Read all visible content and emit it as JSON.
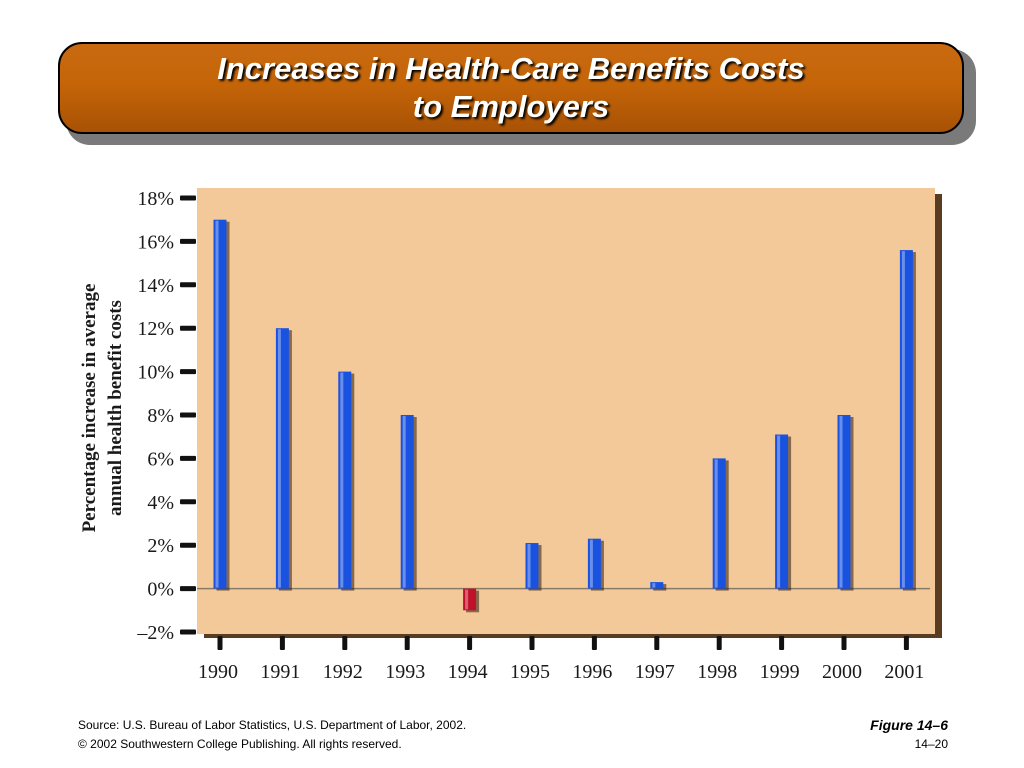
{
  "title": {
    "line1": "Increases in Health-Care Benefits Costs",
    "line2": "to Employers"
  },
  "chart_data": {
    "type": "bar",
    "ylabel_line1": "Percentage increase in average",
    "ylabel_line2": "annual health benefit costs",
    "categories": [
      "1990",
      "1991",
      "1992",
      "1993",
      "1994",
      "1995",
      "1996",
      "1997",
      "1998",
      "1999",
      "2000",
      "2001"
    ],
    "values": [
      17,
      12,
      10,
      8,
      -1,
      2.1,
      2.3,
      0.3,
      6,
      7.1,
      8,
      15.6
    ],
    "ylim": [
      -2,
      18
    ],
    "yticks": [
      "18%",
      "16%",
      "14%",
      "12%",
      "10%",
      "8%",
      "6%",
      "4%",
      "2%",
      "0%",
      "–2%"
    ],
    "ytick_values": [
      18,
      16,
      14,
      12,
      10,
      8,
      6,
      4,
      2,
      0,
      -2
    ],
    "positive_color": "#1a52e0",
    "negative_color": "#c0102a",
    "plot_background": "#f3c99a"
  },
  "footer": {
    "source": "Source: U.S. Bureau of Labor Statistics, U.S. Department of Labor, 2002.",
    "copyright": "© 2002 Southwestern College Publishing. All rights reserved.",
    "figure": "Figure 14–6",
    "page": "14–20"
  }
}
